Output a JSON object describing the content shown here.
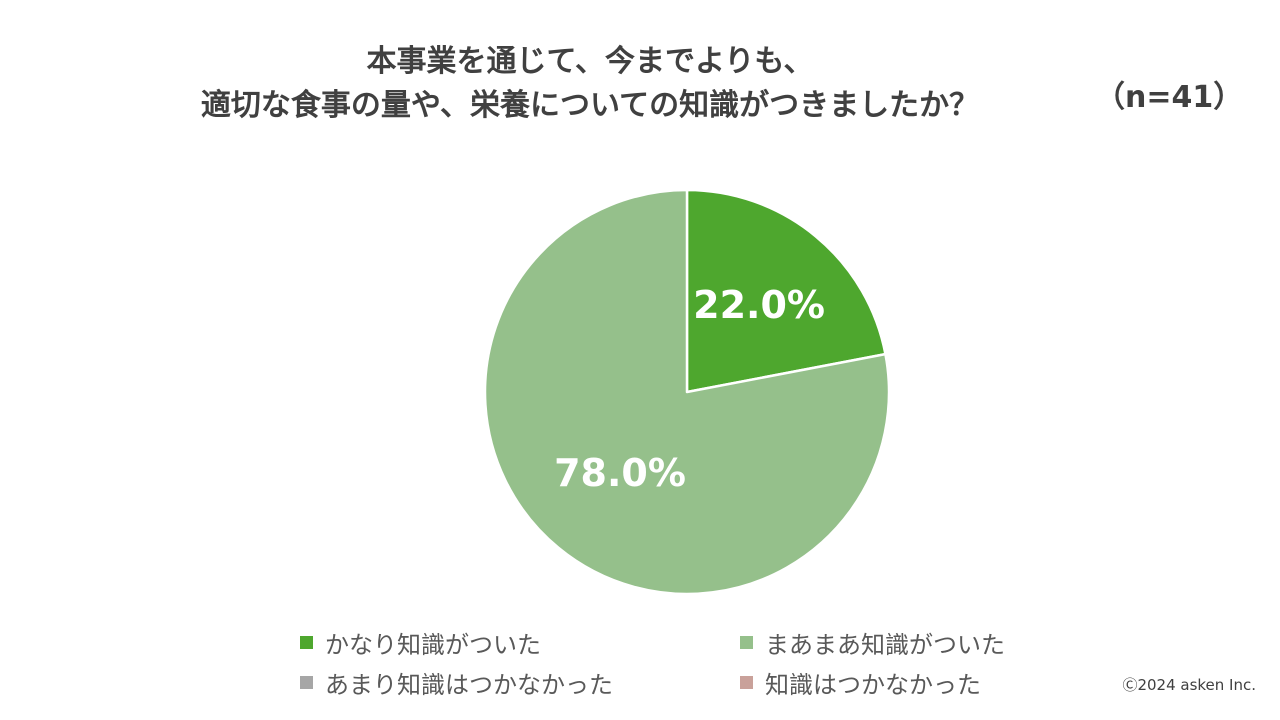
{
  "chart_data": {
    "type": "pie",
    "title_lines": [
      "本事業を通じて、今までよりも、",
      "適切な食事の量や、栄養についての知識がつきましたか？"
    ],
    "sample_size_label": "（n=41）",
    "slices": [
      {
        "label": "かなり知識がついた",
        "value": 22.0,
        "value_label": "22.0%",
        "color": "#4ea72e"
      },
      {
        "label": "まあまあ知識がついた",
        "value": 78.0,
        "value_label": "78.0%",
        "color": "#95c08b"
      },
      {
        "label": "あまり知識はつかなかった",
        "value": 0,
        "value_label": "",
        "color": "#a6a6a6"
      },
      {
        "label": "知識はつかなかった",
        "value": 0,
        "value_label": "",
        "color": "#c9a19a"
      }
    ],
    "legend_position": "bottom"
  },
  "footer": {
    "copyright": "Ⓒ2024 asken Inc."
  }
}
